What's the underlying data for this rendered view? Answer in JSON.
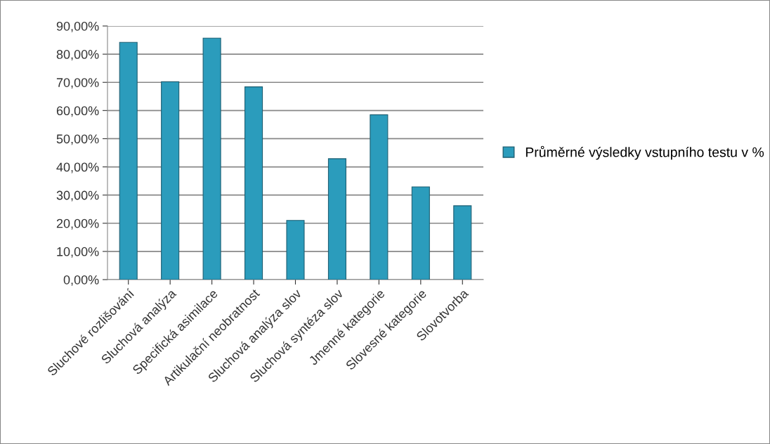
{
  "chart_data": {
    "type": "bar",
    "categories": [
      "Sluchové rozlišování",
      "Sluchová analýza",
      "Specifická asimilace",
      "Artikulační neobratnost",
      "Sluchová analýza slov",
      "Sluchová syntéza slov",
      "Jmenné kategorie",
      "Slovesné kategorie",
      "Slovotvorba"
    ],
    "series": [
      {
        "name": "Průměrné výsledky vstupního testu v %",
        "color": "#2b9cbc",
        "values": [
          84.2,
          70.2,
          85.7,
          68.4,
          21.0,
          42.9,
          58.5,
          32.9,
          26.2
        ]
      }
    ],
    "ylim": [
      0,
      90
    ],
    "yticks": [
      {
        "value": 0,
        "label": "0,00%"
      },
      {
        "value": 10,
        "label": "10,00%"
      },
      {
        "value": 20,
        "label": "20,00%"
      },
      {
        "value": 30,
        "label": "30,00%"
      },
      {
        "value": 40,
        "label": "40,00%"
      },
      {
        "value": 50,
        "label": "50,00%"
      },
      {
        "value": 60,
        "label": "60,00%"
      },
      {
        "value": 70,
        "label": "70,00%"
      },
      {
        "value": 80,
        "label": "80,00%"
      },
      {
        "value": 90,
        "label": "90,00%"
      }
    ],
    "grid": "y",
    "legend": "right"
  }
}
